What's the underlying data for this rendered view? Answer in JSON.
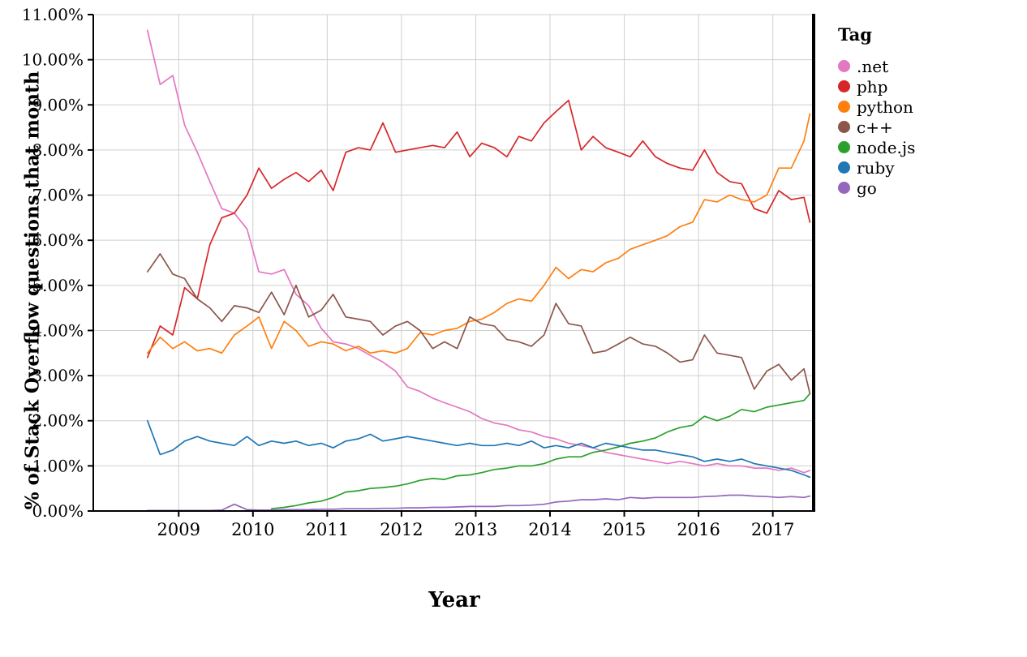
{
  "chart_data": {
    "type": "line",
    "xlabel": "Year",
    "ylabel": "% of Stack Overflow questions that month",
    "legend_title": "Tag",
    "legend_position": "right",
    "grid": true,
    "xlim": [
      2007.85,
      2017.55
    ],
    "ylim": [
      0,
      11
    ],
    "x_ticks": [
      2009,
      2010,
      2011,
      2012,
      2013,
      2014,
      2015,
      2016,
      2017
    ],
    "y_ticks": [
      0,
      1,
      2,
      3,
      4,
      5,
      6,
      7,
      8,
      9,
      10,
      11
    ],
    "y_tick_labels": [
      "0.00%",
      "1.00%",
      "2.00%",
      "3.00%",
      "4.00%",
      "5.00%",
      "6.00%",
      "7.00%",
      "8.00%",
      "9.00%",
      "10.00%",
      "11.00%"
    ],
    "x": [
      2008.58,
      2008.75,
      2008.92,
      2009.08,
      2009.25,
      2009.42,
      2009.58,
      2009.75,
      2009.92,
      2010.08,
      2010.25,
      2010.42,
      2010.58,
      2010.75,
      2010.92,
      2011.08,
      2011.25,
      2011.42,
      2011.58,
      2011.75,
      2011.92,
      2012.08,
      2012.25,
      2012.42,
      2012.58,
      2012.75,
      2012.92,
      2013.08,
      2013.25,
      2013.42,
      2013.58,
      2013.75,
      2013.92,
      2014.08,
      2014.25,
      2014.42,
      2014.58,
      2014.75,
      2014.92,
      2015.08,
      2015.25,
      2015.42,
      2015.58,
      2015.75,
      2015.92,
      2016.08,
      2016.25,
      2016.42,
      2016.58,
      2016.75,
      2016.92,
      2017.08,
      2017.25,
      2017.42,
      2017.5
    ],
    "series": [
      {
        "name": ".net",
        "color": "#e377c2",
        "values": [
          10.65,
          9.45,
          9.65,
          8.55,
          7.95,
          7.3,
          6.7,
          6.6,
          6.25,
          5.3,
          5.25,
          5.35,
          4.8,
          4.55,
          4.05,
          3.75,
          3.7,
          3.6,
          3.45,
          3.3,
          3.1,
          2.75,
          2.65,
          2.5,
          2.4,
          2.3,
          2.2,
          2.05,
          1.95,
          1.9,
          1.8,
          1.75,
          1.65,
          1.6,
          1.5,
          1.45,
          1.4,
          1.3,
          1.25,
          1.2,
          1.15,
          1.1,
          1.05,
          1.1,
          1.05,
          1.0,
          1.05,
          1.0,
          1.0,
          0.95,
          0.95,
          0.9,
          0.95,
          0.85,
          0.9
        ]
      },
      {
        "name": "php",
        "color": "#d62728",
        "values": [
          3.4,
          4.1,
          3.9,
          4.95,
          4.7,
          5.9,
          6.5,
          6.6,
          7.0,
          7.6,
          7.15,
          7.35,
          7.5,
          7.3,
          7.55,
          7.1,
          7.95,
          8.05,
          8.0,
          8.6,
          7.95,
          8.0,
          8.05,
          8.1,
          8.05,
          8.4,
          7.85,
          8.15,
          8.05,
          7.85,
          8.3,
          8.2,
          8.6,
          8.85,
          9.1,
          8.0,
          8.3,
          8.05,
          7.95,
          7.85,
          8.2,
          7.85,
          7.7,
          7.6,
          7.55,
          8.0,
          7.5,
          7.3,
          7.25,
          6.7,
          6.6,
          7.1,
          6.9,
          6.95,
          6.4
        ]
      },
      {
        "name": "python",
        "color": "#ff7f0e",
        "values": [
          3.5,
          3.85,
          3.6,
          3.75,
          3.55,
          3.6,
          3.5,
          3.9,
          4.1,
          4.3,
          3.6,
          4.2,
          4.0,
          3.65,
          3.75,
          3.7,
          3.55,
          3.65,
          3.5,
          3.55,
          3.5,
          3.6,
          3.95,
          3.9,
          4.0,
          4.05,
          4.2,
          4.25,
          4.4,
          4.6,
          4.7,
          4.65,
          5.0,
          5.4,
          5.15,
          5.35,
          5.3,
          5.5,
          5.6,
          5.8,
          5.9,
          6.0,
          6.1,
          6.3,
          6.4,
          6.9,
          6.85,
          7.0,
          6.9,
          6.85,
          7.0,
          7.6,
          7.6,
          8.2,
          8.8
        ]
      },
      {
        "name": "c++",
        "color": "#8c564b",
        "values": [
          5.3,
          5.7,
          5.25,
          5.15,
          4.7,
          4.5,
          4.2,
          4.55,
          4.5,
          4.4,
          4.85,
          4.35,
          5.0,
          4.3,
          4.45,
          4.8,
          4.3,
          4.25,
          4.2,
          3.9,
          4.1,
          4.2,
          4.0,
          3.6,
          3.75,
          3.6,
          4.3,
          4.15,
          4.1,
          3.8,
          3.75,
          3.65,
          3.9,
          4.6,
          4.15,
          4.1,
          3.5,
          3.55,
          3.7,
          3.85,
          3.7,
          3.65,
          3.5,
          3.3,
          3.35,
          3.9,
          3.5,
          3.45,
          3.4,
          2.7,
          3.1,
          3.25,
          2.9,
          3.15,
          2.6
        ]
      },
      {
        "name": "node.js",
        "color": "#2ca02c",
        "values": [
          null,
          null,
          null,
          null,
          null,
          null,
          null,
          null,
          null,
          null,
          0.05,
          0.08,
          0.12,
          0.18,
          0.22,
          0.3,
          0.42,
          0.45,
          0.5,
          0.52,
          0.55,
          0.6,
          0.68,
          0.72,
          0.7,
          0.78,
          0.8,
          0.85,
          0.92,
          0.95,
          1.0,
          1.0,
          1.05,
          1.15,
          1.2,
          1.2,
          1.3,
          1.35,
          1.42,
          1.5,
          1.55,
          1.62,
          1.75,
          1.85,
          1.9,
          2.1,
          2.0,
          2.1,
          2.25,
          2.2,
          2.3,
          2.35,
          2.4,
          2.45,
          2.6
        ]
      },
      {
        "name": "ruby",
        "color": "#1f77b4",
        "values": [
          2.0,
          1.25,
          1.35,
          1.55,
          1.65,
          1.55,
          1.5,
          1.45,
          1.65,
          1.45,
          1.55,
          1.5,
          1.55,
          1.45,
          1.5,
          1.4,
          1.55,
          1.6,
          1.7,
          1.55,
          1.6,
          1.65,
          1.6,
          1.55,
          1.5,
          1.45,
          1.5,
          1.45,
          1.45,
          1.5,
          1.45,
          1.55,
          1.4,
          1.45,
          1.4,
          1.5,
          1.4,
          1.5,
          1.45,
          1.4,
          1.35,
          1.35,
          1.3,
          1.25,
          1.2,
          1.1,
          1.15,
          1.1,
          1.15,
          1.05,
          1.0,
          0.95,
          0.9,
          0.8,
          0.75
        ]
      },
      {
        "name": "go",
        "color": "#9467bd",
        "values": [
          0.01,
          0.01,
          0.01,
          0.01,
          0.01,
          0.01,
          0.02,
          0.15,
          0.03,
          0.02,
          0.02,
          0.03,
          0.03,
          0.03,
          0.04,
          0.04,
          0.05,
          0.05,
          0.05,
          0.06,
          0.06,
          0.07,
          0.07,
          0.08,
          0.08,
          0.09,
          0.1,
          0.1,
          0.1,
          0.12,
          0.12,
          0.13,
          0.15,
          0.2,
          0.22,
          0.25,
          0.25,
          0.27,
          0.25,
          0.3,
          0.28,
          0.3,
          0.3,
          0.3,
          0.3,
          0.32,
          0.33,
          0.35,
          0.35,
          0.33,
          0.32,
          0.3,
          0.32,
          0.3,
          0.33
        ]
      }
    ]
  }
}
